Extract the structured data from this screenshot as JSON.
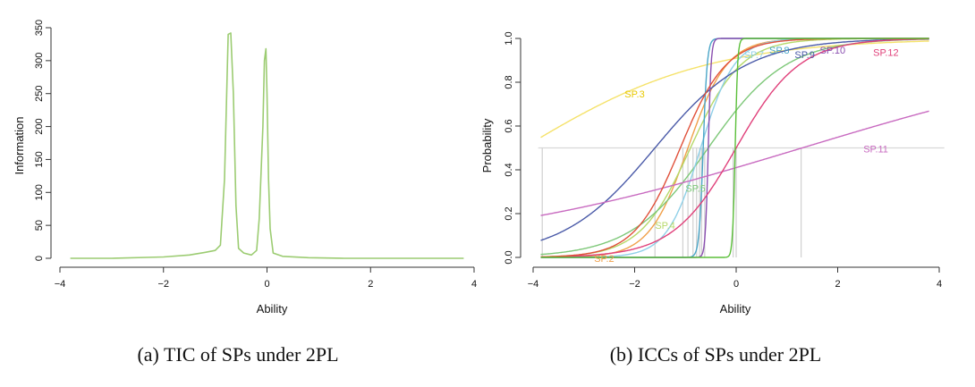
{
  "chart_data": [
    {
      "type": "line",
      "caption": "(a) TIC of SPs under 2PL",
      "xlabel": "Ability",
      "ylabel": "Information",
      "xlim": [
        -4,
        4
      ],
      "ylim": [
        0,
        350
      ],
      "xticks": [
        -4,
        -2,
        0,
        2,
        4
      ],
      "yticks": [
        0,
        50,
        100,
        150,
        200,
        250,
        300,
        350
      ],
      "grid": false,
      "series": [
        {
          "color": "#9ccc72",
          "x": [
            -3.8,
            -3.0,
            -2.0,
            -1.5,
            -1.2,
            -1.0,
            -0.9,
            -0.82,
            -0.75,
            -0.7,
            -0.65,
            -0.6,
            -0.55,
            -0.45,
            -0.3,
            -0.2,
            -0.15,
            -0.08,
            -0.05,
            -0.02,
            0.0,
            0.03,
            0.06,
            0.12,
            0.3,
            0.8,
            1.5,
            2.5,
            3.8
          ],
          "y": [
            0,
            0,
            2,
            5,
            9,
            12,
            20,
            120,
            340,
            342,
            250,
            80,
            15,
            8,
            5,
            12,
            60,
            200,
            300,
            318,
            250,
            120,
            45,
            8,
            3,
            1,
            0,
            0,
            0
          ]
        }
      ]
    },
    {
      "type": "line",
      "caption": "(b) ICCs of SPs under 2PL",
      "xlabel": "Ability",
      "ylabel": "Probability",
      "xlim": [
        -4,
        4
      ],
      "ylim": [
        0,
        1
      ],
      "xticks": [
        -4,
        -2,
        0,
        2,
        4
      ],
      "yticks": [
        0.0,
        0.2,
        0.4,
        0.6,
        0.8,
        1.0
      ],
      "grid": false,
      "reference_line_y": 0.5,
      "series": [
        {
          "name": "SP.2",
          "color": "#f0a04a",
          "a": 2.6,
          "b": -0.95
        },
        {
          "name": "SP.3",
          "color": "#f5e26a",
          "a": 0.55,
          "b": -4.2
        },
        {
          "name": "SP.4",
          "color": "#b6d96a",
          "a": 2.0,
          "b": -0.9
        },
        {
          "name": "SP.5",
          "color": "#7ec879",
          "a": 1.3,
          "b": -0.55
        },
        {
          "name": "SP.7",
          "color": "#8fd0e8",
          "a": 3.0,
          "b": -0.7
        },
        {
          "name": "SP.8",
          "color": "#4aa6c8",
          "a": 25,
          "b": -0.65
        },
        {
          "name": "SP.9",
          "color": "#4a5aa8",
          "a": 1.1,
          "b": -1.6
        },
        {
          "name": "SP.10",
          "color": "#8a4fb0",
          "a": 35,
          "b": -0.55
        },
        {
          "name": "SP.11",
          "color": "#c86ac0",
          "a": 0.28,
          "b": 1.3
        },
        {
          "name": "SP.12",
          "color": "#e0407a",
          "a": 1.6,
          "b": 0.0
        },
        {
          "color": "#e0503a",
          "a": 2.2,
          "b": -1.1
        },
        {
          "color": "#5bbf3a",
          "a": 40,
          "b": -0.02
        }
      ],
      "labels": [
        {
          "text": "SP.2",
          "color": "#f0a04a",
          "x": -2.6,
          "y": -0.02
        },
        {
          "text": "SP.3",
          "color": "#e8c800",
          "x": -2.0,
          "y": 0.73
        },
        {
          "text": "SP.4",
          "color": "#b6d96a",
          "x": -1.4,
          "y": 0.13
        },
        {
          "text": "SP.5",
          "color": "#7ec879",
          "x": -0.8,
          "y": 0.3
        },
        {
          "text": "SP.7",
          "color": "#8fd0e8",
          "x": 0.35,
          "y": 0.91
        },
        {
          "text": "SP.8",
          "color": "#4aa6c8",
          "x": 0.85,
          "y": 0.93
        },
        {
          "text": "SP.9",
          "color": "#4a5aa8",
          "x": 1.35,
          "y": 0.91
        },
        {
          "text": "SP.10",
          "color": "#8a4fb0",
          "x": 1.9,
          "y": 0.93
        },
        {
          "text": "SP.11",
          "color": "#c86ac0",
          "x": 2.75,
          "y": 0.48
        },
        {
          "text": "SP.12",
          "color": "#e0407a",
          "x": 2.95,
          "y": 0.92
        }
      ],
      "vertical_lines_x": [
        -3.82,
        -1.6,
        -1.05,
        -0.95,
        -0.85,
        -0.78,
        -0.72,
        -0.68,
        -0.62,
        -0.06,
        0.0,
        1.28
      ]
    }
  ]
}
